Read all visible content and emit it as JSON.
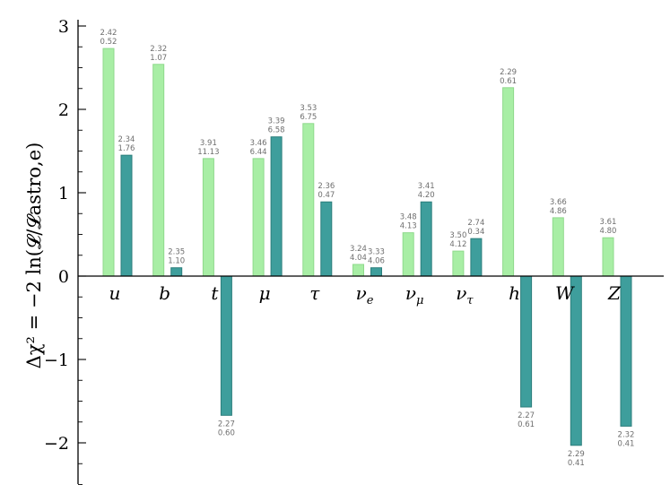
{
  "chart_data": {
    "type": "bar",
    "ylabel": "Δχ² = −2 ln(𝓛/𝓛astro,e)",
    "ylim": [
      -2.5,
      3.0
    ],
    "yticks": [
      -2,
      -1,
      0,
      1,
      2,
      3
    ],
    "ytick_labels": [
      "−2",
      "−1",
      "0",
      "1",
      "2",
      "3"
    ],
    "grid": false,
    "colors": {
      "light": "#a8eea5",
      "light_edge": "#8fd98c",
      "dark": "#3e9e9c",
      "dark_edge": "#2c7e7c",
      "annotation": "#6e6e6e"
    },
    "categories": [
      {
        "main": "u",
        "sub": ""
      },
      {
        "main": "b",
        "sub": ""
      },
      {
        "main": "t",
        "sub": ""
      },
      {
        "main": "μ",
        "sub": ""
      },
      {
        "main": "τ",
        "sub": ""
      },
      {
        "main": "ν",
        "sub": "e"
      },
      {
        "main": "ν",
        "sub": "μ"
      },
      {
        "main": "ν",
        "sub": "τ"
      },
      {
        "main": "h",
        "sub": ""
      },
      {
        "main": "W",
        "sub": ""
      },
      {
        "main": "Z",
        "sub": ""
      }
    ],
    "series": [
      {
        "values": [
          2.73,
          2.54,
          1.41,
          1.41,
          1.83,
          0.14,
          0.52,
          0.3,
          2.26,
          0.7,
          0.46
        ],
        "annotations": [
          [
            "2.42",
            "0.52"
          ],
          [
            "2.32",
            "1.07"
          ],
          [
            "3.91",
            "11.13"
          ],
          [
            "3.46",
            "6.44"
          ],
          [
            "3.53",
            "6.75"
          ],
          [
            "3.24",
            "4.04"
          ],
          [
            "3.48",
            "4.13"
          ],
          [
            "3.50",
            "4.12"
          ],
          [
            "2.29",
            "0.61"
          ],
          [
            "3.66",
            "4.86"
          ],
          [
            "3.61",
            "4.80"
          ]
        ]
      },
      {
        "values": [
          1.45,
          0.1,
          -1.67,
          1.67,
          0.89,
          0.1,
          0.89,
          0.45,
          -1.57,
          -2.03,
          -1.8
        ],
        "annotations": [
          [
            "2.34",
            "1.76"
          ],
          [
            "2.35",
            "1.10"
          ],
          [
            "2.27",
            "0.60"
          ],
          [
            "3.39",
            "6.58"
          ],
          [
            "2.36",
            "0.47"
          ],
          [
            "3.33",
            "4.06"
          ],
          [
            "3.41",
            "4.20"
          ],
          [
            "2.74",
            "0.34"
          ],
          [
            "2.27",
            "0.61"
          ],
          [
            "2.29",
            "0.41"
          ],
          [
            "2.32",
            "0.41"
          ]
        ]
      }
    ]
  }
}
